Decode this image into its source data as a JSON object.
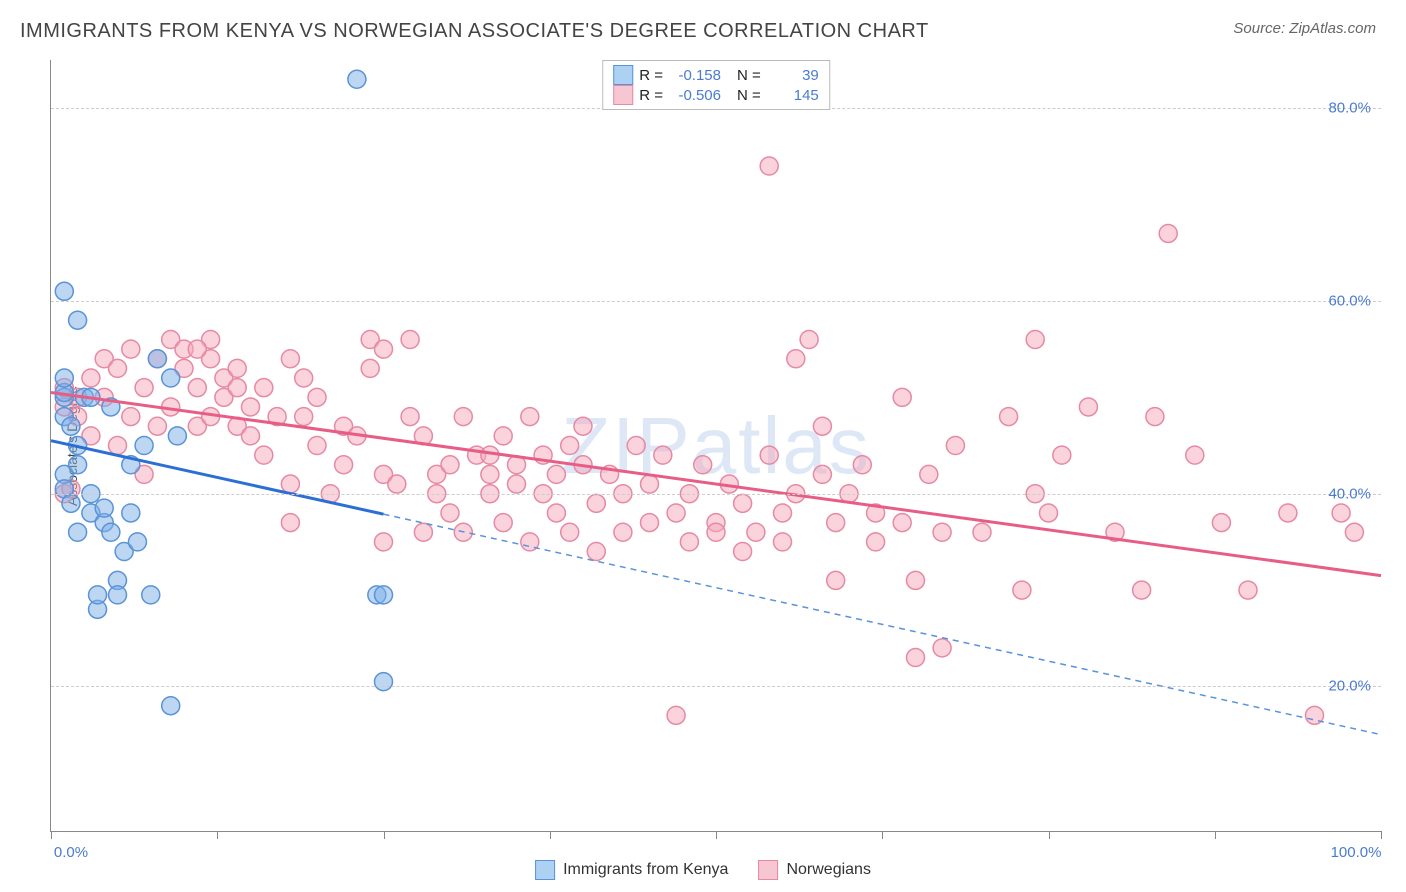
{
  "header": {
    "title": "IMMIGRANTS FROM KENYA VS NORWEGIAN ASSOCIATE'S DEGREE CORRELATION CHART",
    "source_prefix": "Source: ",
    "source_name": "ZipAtlas.com"
  },
  "chart": {
    "type": "scatter",
    "ylabel": "Associate's Degree",
    "xlim": [
      0,
      100
    ],
    "ylim": [
      5,
      85
    ],
    "y_ticks": [
      20,
      40,
      60,
      80
    ],
    "y_tick_labels": [
      "20.0%",
      "40.0%",
      "60.0%",
      "80.0%"
    ],
    "x_ticks": [
      0,
      12.5,
      25,
      37.5,
      50,
      62.5,
      75,
      87.5,
      100
    ],
    "x_tick_labels_shown": {
      "0": "0.0%",
      "100": "100.0%"
    },
    "grid_color": "#cccccc",
    "axis_color": "#888888",
    "background_color": "#ffffff",
    "watermark": "ZIPatlas",
    "marker_radius": 9,
    "marker_stroke_width": 1.5,
    "trend_line_width": 3,
    "series": [
      {
        "id": "kenya",
        "label": "Immigrants from Kenya",
        "fill_color": "rgba(124,175,232,0.5)",
        "stroke_color": "#5a93d8",
        "swatch_fill": "#add1f2",
        "swatch_stroke": "#5a93d8",
        "R": "-0.158",
        "N": "39",
        "trend": {
          "x1": 0,
          "y1": 45.5,
          "x2": 100,
          "y2": 15,
          "solid_until_x": 25,
          "dash": "6,5"
        },
        "points": [
          [
            1,
            50
          ],
          [
            1,
            50.5
          ],
          [
            1,
            52
          ],
          [
            1,
            48
          ],
          [
            1.5,
            47
          ],
          [
            1,
            42
          ],
          [
            1,
            40.5
          ],
          [
            1,
            61
          ],
          [
            2,
            58
          ],
          [
            2,
            45
          ],
          [
            2,
            43
          ],
          [
            2.5,
            50
          ],
          [
            3,
            38
          ],
          [
            3,
            40
          ],
          [
            3.5,
            28
          ],
          [
            3.5,
            29.5
          ],
          [
            4,
            37
          ],
          [
            4,
            38.5
          ],
          [
            4.5,
            36
          ],
          [
            5,
            31
          ],
          [
            5,
            29.5
          ],
          [
            5.5,
            34
          ],
          [
            6,
            38
          ],
          [
            6,
            43
          ],
          [
            6.5,
            35
          ],
          [
            7,
            45
          ],
          [
            7.5,
            29.5
          ],
          [
            8,
            54
          ],
          [
            9,
            18
          ],
          [
            9,
            52
          ],
          [
            9.5,
            46
          ],
          [
            23,
            83
          ],
          [
            25,
            20.5
          ],
          [
            24.5,
            29.5
          ],
          [
            25,
            29.5
          ],
          [
            1.5,
            39
          ],
          [
            2,
            36
          ],
          [
            3,
            50
          ],
          [
            4.5,
            49
          ]
        ]
      },
      {
        "id": "norwegians",
        "label": "Norwegians",
        "fill_color": "rgba(245,167,187,0.5)",
        "stroke_color": "#e68aa3",
        "swatch_fill": "#f7c6d3",
        "swatch_stroke": "#e68aa3",
        "R": "-0.506",
        "N": "145",
        "trend": {
          "x1": 0,
          "y1": 50.5,
          "x2": 100,
          "y2": 31.5,
          "solid_until_x": 100,
          "dash": null
        },
        "points": [
          [
            1,
            51
          ],
          [
            1,
            49
          ],
          [
            1,
            40
          ],
          [
            1.5,
            40.5
          ],
          [
            2,
            50
          ],
          [
            2,
            48
          ],
          [
            3,
            52
          ],
          [
            3,
            46
          ],
          [
            4,
            54
          ],
          [
            4,
            50
          ],
          [
            5,
            53
          ],
          [
            5,
            45
          ],
          [
            6,
            55
          ],
          [
            6,
            48
          ],
          [
            7,
            51
          ],
          [
            7,
            42
          ],
          [
            8,
            54
          ],
          [
            8,
            47
          ],
          [
            9,
            56
          ],
          [
            9,
            49
          ],
          [
            10,
            53
          ],
          [
            10,
            55
          ],
          [
            11,
            47
          ],
          [
            11,
            51
          ],
          [
            12,
            54
          ],
          [
            12,
            48
          ],
          [
            12,
            56
          ],
          [
            13,
            52
          ],
          [
            13,
            50
          ],
          [
            14,
            53
          ],
          [
            14,
            47
          ],
          [
            15,
            46
          ],
          [
            15,
            49
          ],
          [
            16,
            51
          ],
          [
            16,
            44
          ],
          [
            17,
            48
          ],
          [
            18,
            54
          ],
          [
            18,
            41
          ],
          [
            18,
            37
          ],
          [
            19,
            52
          ],
          [
            19,
            48
          ],
          [
            20,
            45
          ],
          [
            20,
            50
          ],
          [
            21,
            40
          ],
          [
            22,
            47
          ],
          [
            22,
            43
          ],
          [
            23,
            46
          ],
          [
            24,
            56
          ],
          [
            24,
            53
          ],
          [
            25,
            55
          ],
          [
            25,
            42
          ],
          [
            25,
            35
          ],
          [
            26,
            41
          ],
          [
            27,
            48
          ],
          [
            27,
            56
          ],
          [
            28,
            46
          ],
          [
            28,
            36
          ],
          [
            29,
            42
          ],
          [
            29,
            40
          ],
          [
            30,
            43
          ],
          [
            30,
            38
          ],
          [
            31,
            48
          ],
          [
            31,
            36
          ],
          [
            32,
            44
          ],
          [
            33,
            40
          ],
          [
            33,
            42
          ],
          [
            34,
            46
          ],
          [
            34,
            37
          ],
          [
            35,
            43
          ],
          [
            35,
            41
          ],
          [
            36,
            48
          ],
          [
            36,
            35
          ],
          [
            37,
            44
          ],
          [
            37,
            40
          ],
          [
            38,
            42
          ],
          [
            38,
            38
          ],
          [
            39,
            45
          ],
          [
            39,
            36
          ],
          [
            40,
            43
          ],
          [
            40,
            47
          ],
          [
            41,
            39
          ],
          [
            41,
            34
          ],
          [
            42,
            42
          ],
          [
            43,
            36
          ],
          [
            43,
            40
          ],
          [
            44,
            45
          ],
          [
            45,
            41
          ],
          [
            45,
            37
          ],
          [
            46,
            44
          ],
          [
            47,
            17
          ],
          [
            47,
            38
          ],
          [
            48,
            35
          ],
          [
            48,
            40
          ],
          [
            49,
            43
          ],
          [
            50,
            37
          ],
          [
            50,
            36
          ],
          [
            51,
            41
          ],
          [
            52,
            34
          ],
          [
            52,
            39
          ],
          [
            53,
            36
          ],
          [
            54,
            44
          ],
          [
            54,
            74
          ],
          [
            55,
            38
          ],
          [
            55,
            35
          ],
          [
            56,
            40
          ],
          [
            56,
            54
          ],
          [
            57,
            56
          ],
          [
            58,
            42
          ],
          [
            58,
            47
          ],
          [
            59,
            37
          ],
          [
            59,
            31
          ],
          [
            60,
            40
          ],
          [
            61,
            43
          ],
          [
            62,
            35
          ],
          [
            62,
            38
          ],
          [
            64,
            37
          ],
          [
            64,
            50
          ],
          [
            65,
            31
          ],
          [
            65,
            23
          ],
          [
            66,
            42
          ],
          [
            67,
            36
          ],
          [
            67,
            24
          ],
          [
            68,
            45
          ],
          [
            70,
            36
          ],
          [
            72,
            48
          ],
          [
            73,
            30
          ],
          [
            74,
            56
          ],
          [
            74,
            40
          ],
          [
            75,
            38
          ],
          [
            76,
            44
          ],
          [
            78,
            49
          ],
          [
            80,
            36
          ],
          [
            82,
            30
          ],
          [
            83,
            48
          ],
          [
            84,
            67
          ],
          [
            86,
            44
          ],
          [
            88,
            37
          ],
          [
            90,
            30
          ],
          [
            93,
            38
          ],
          [
            95,
            17
          ],
          [
            97,
            38
          ],
          [
            98,
            36
          ],
          [
            33,
            44
          ],
          [
            14,
            51
          ],
          [
            11,
            55
          ]
        ]
      }
    ]
  },
  "legend_top": {
    "R_label": "R =",
    "N_label": "N ="
  }
}
